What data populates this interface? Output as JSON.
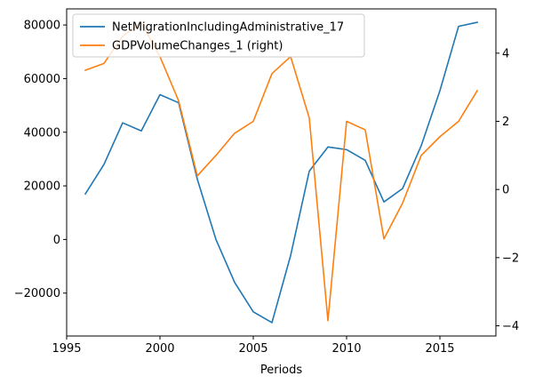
{
  "chart_data": {
    "type": "line",
    "xlabel": "Periods",
    "xlim": [
      1995,
      2018
    ],
    "x_ticks": [
      1995,
      2000,
      2005,
      2010,
      2015
    ],
    "legend_position": "top-left",
    "grid": false,
    "x": [
      1996,
      1997,
      1998,
      1999,
      2000,
      2001,
      2002,
      2003,
      2004,
      2005,
      2006,
      2007,
      2008,
      2009,
      2010,
      2011,
      2012,
      2013,
      2014,
      2015,
      2016,
      2017
    ],
    "left_axis": {
      "ylim": [
        -36000,
        86000
      ],
      "ticks": [
        -20000,
        0,
        20000,
        40000,
        60000,
        80000
      ],
      "tick_labels": [
        "−20000",
        "0",
        "20000",
        "40000",
        "60000",
        "80000"
      ]
    },
    "right_axis": {
      "ylim": [
        -4.3,
        5.3
      ],
      "ticks": [
        -4,
        -2,
        0,
        2,
        4
      ],
      "tick_labels": [
        "−4",
        "−2",
        "0",
        "2",
        "4"
      ]
    },
    "series": [
      {
        "name": "NetMigrationIncludingAdministrative_17",
        "axis": "left",
        "color": "#1f77b4",
        "values": [
          17000,
          28000,
          43500,
          40500,
          54000,
          51000,
          22500,
          0,
          -16000,
          -27000,
          -31000,
          -6000,
          25500,
          34500,
          33500,
          29500,
          14000,
          19000,
          35000,
          55500,
          79500,
          81000
        ]
      },
      {
        "name": "GDPVolumeChanges_1 (right)",
        "axis": "right",
        "color": "#ff7f0e",
        "values": [
          3.5,
          3.7,
          4.5,
          4.9,
          3.9,
          2.6,
          0.4,
          1.0,
          1.65,
          2.0,
          3.4,
          3.9,
          2.1,
          -3.85,
          2.0,
          1.75,
          -1.45,
          -0.4,
          1.0,
          1.55,
          2.0,
          2.9
        ]
      }
    ]
  }
}
